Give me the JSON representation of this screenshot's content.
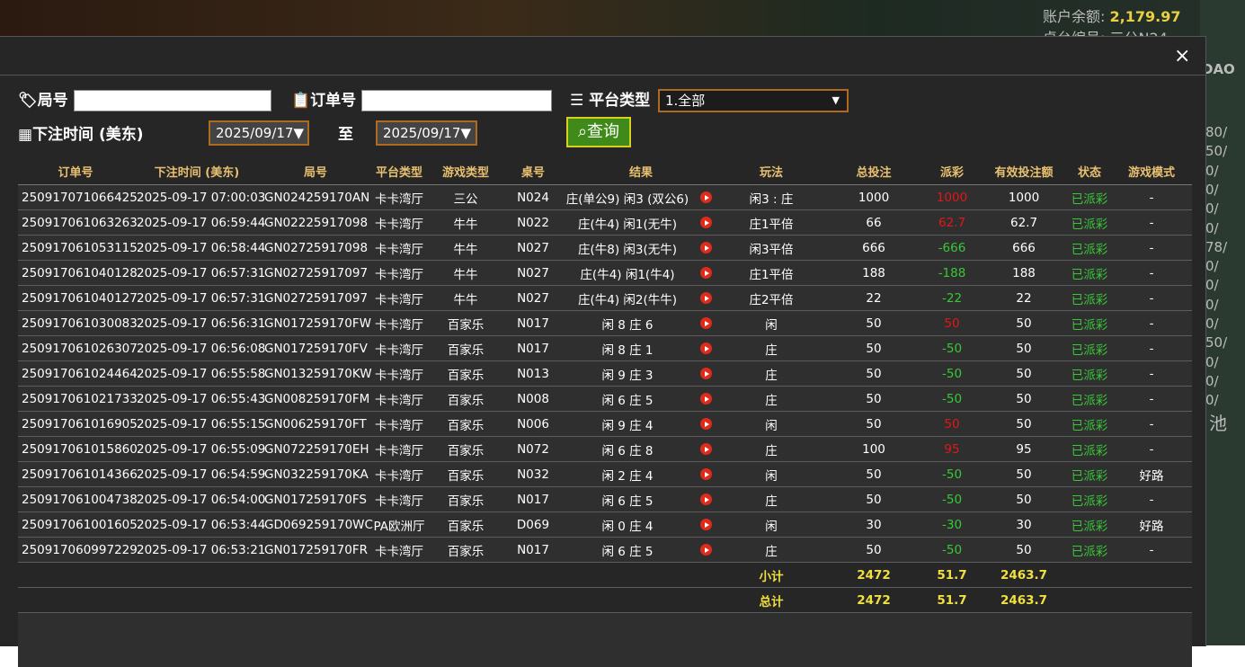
{
  "background": {
    "balance_label": "账户余额:",
    "balance": "2,179.97",
    "table_label": "桌台编号:",
    "table_value": "三公N24",
    "side_code": "DAO",
    "side_list": [
      "80/",
      "50/",
      "0/",
      "0/",
      "0/",
      "0/",
      "78/",
      "0/",
      "0/",
      "0/",
      "0/",
      "50/",
      "0/",
      "0/",
      "0/"
    ],
    "side_char": "池"
  },
  "dialog": {
    "close": "×"
  },
  "filters": {
    "round_label": "局号",
    "order_label": "订单号",
    "platform_label": "平台类型",
    "platform_value": "1.全部",
    "time_label": "下注时间 (美东)",
    "date_from": "2025/09/17▼",
    "to": "至",
    "date_to": "2025/09/17▼",
    "search": "查询"
  },
  "table": {
    "headers": [
      "订单号",
      "下注时间 (美东)",
      "局号",
      "平台类型",
      "游戏类型",
      "桌号",
      "结果",
      "玩法",
      "总投注",
      "派彩",
      "有效投注额",
      "状态",
      "游戏模式"
    ],
    "rows": [
      [
        "250917071066425",
        "2025-09-17 07:00:03",
        "GN024259170AN",
        "卡卡湾厅",
        "三公",
        "N024",
        "庄(单公9) 闲3 (双公6)",
        "闲3 : 庄",
        1000,
        1000,
        1000,
        "已派彩",
        "-"
      ],
      [
        "250917061063263",
        "2025-09-17 06:59:44",
        "GN02225917098",
        "卡卡湾厅",
        "牛牛",
        "N022",
        "庄(牛4) 闲1(无牛)",
        "庄1平倍",
        66,
        62.7,
        62.7,
        "已派彩",
        "-"
      ],
      [
        "250917061053115",
        "2025-09-17 06:58:44",
        "GN02725917098",
        "卡卡湾厅",
        "牛牛",
        "N027",
        "庄(牛8) 闲3(无牛)",
        "闲3平倍",
        666,
        -666,
        666,
        "已派彩",
        "-"
      ],
      [
        "250917061040128",
        "2025-09-17 06:57:31",
        "GN02725917097",
        "卡卡湾厅",
        "牛牛",
        "N027",
        "庄(牛4) 闲1(牛4)",
        "庄1平倍",
        188,
        -188,
        188,
        "已派彩",
        "-"
      ],
      [
        "250917061040127",
        "2025-09-17 06:57:31",
        "GN02725917097",
        "卡卡湾厅",
        "牛牛",
        "N027",
        "庄(牛4) 闲2(牛牛)",
        "庄2平倍",
        22,
        -22,
        22,
        "已派彩",
        "-"
      ],
      [
        "250917061030083",
        "2025-09-17 06:56:31",
        "GN017259170FW",
        "卡卡湾厅",
        "百家乐",
        "N017",
        "闲 8 庄 6",
        "闲",
        50,
        50,
        50,
        "已派彩",
        "-"
      ],
      [
        "250917061026307",
        "2025-09-17 06:56:08",
        "GN017259170FV",
        "卡卡湾厅",
        "百家乐",
        "N017",
        "闲 8 庄 1",
        "庄",
        50,
        -50,
        50,
        "已派彩",
        "-"
      ],
      [
        "250917061024464",
        "2025-09-17 06:55:58",
        "GN013259170KW",
        "卡卡湾厅",
        "百家乐",
        "N013",
        "闲 9 庄 3",
        "庄",
        50,
        -50,
        50,
        "已派彩",
        "-"
      ],
      [
        "250917061021733",
        "2025-09-17 06:55:43",
        "GN008259170FM",
        "卡卡湾厅",
        "百家乐",
        "N008",
        "闲 6 庄 5",
        "庄",
        50,
        -50,
        50,
        "已派彩",
        "-"
      ],
      [
        "250917061016905",
        "2025-09-17 06:55:15",
        "GN006259170FT",
        "卡卡湾厅",
        "百家乐",
        "N006",
        "闲 9 庄 4",
        "闲",
        50,
        50,
        50,
        "已派彩",
        "-"
      ],
      [
        "250917061015860",
        "2025-09-17 06:55:09",
        "GN072259170EH",
        "卡卡湾厅",
        "百家乐",
        "N072",
        "闲 6 庄 8",
        "庄",
        100,
        95,
        95,
        "已派彩",
        "-"
      ],
      [
        "250917061014366",
        "2025-09-17 06:54:59",
        "GN032259170KA",
        "卡卡湾厅",
        "百家乐",
        "N032",
        "闲 2 庄 4",
        "闲",
        50,
        -50,
        50,
        "已派彩",
        "好路"
      ],
      [
        "250917061004738",
        "2025-09-17 06:54:00",
        "GN017259170FS",
        "卡卡湾厅",
        "百家乐",
        "N017",
        "闲 6 庄 5",
        "庄",
        50,
        -50,
        50,
        "已派彩",
        "-"
      ],
      [
        "250917061001605",
        "2025-09-17 06:53:44",
        "GD069259170WC",
        "PA欧洲厅",
        "百家乐",
        "D069",
        "闲 0 庄 4",
        "闲",
        30,
        -30,
        30,
        "已派彩",
        "好路"
      ],
      [
        "250917060997229",
        "2025-09-17 06:53:21",
        "GN017259170FR",
        "卡卡湾厅",
        "百家乐",
        "N017",
        "闲 6 庄 5",
        "庄",
        50,
        -50,
        50,
        "已派彩",
        "-"
      ]
    ],
    "totals": [
      {
        "label": "小计",
        "total_bet": 2472,
        "payout": 51.7,
        "valid_bet": 2463.7
      },
      {
        "label": "总计",
        "total_bet": 2472,
        "payout": 51.7,
        "valid_bet": 2463.7
      }
    ]
  }
}
